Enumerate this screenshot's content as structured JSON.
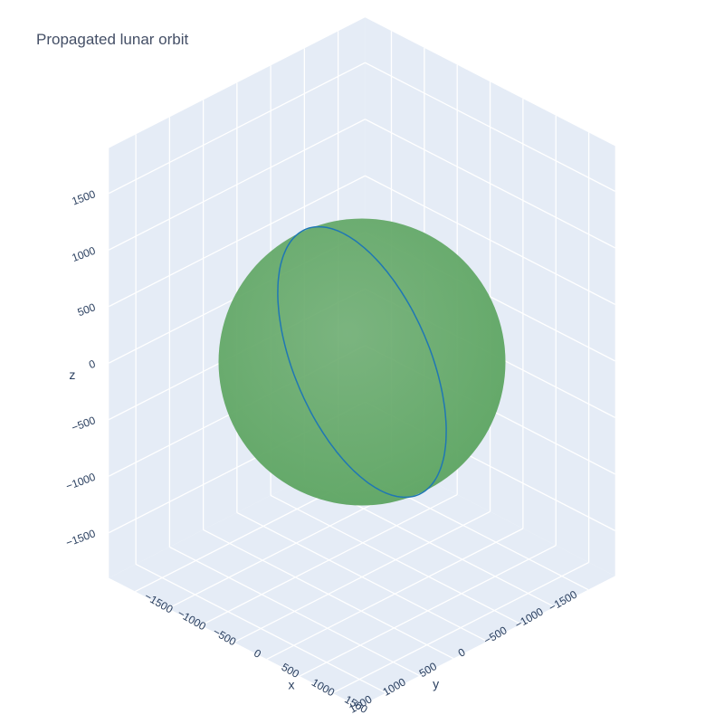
{
  "chart_data": {
    "type": "scatter3d",
    "title": "Propagated lunar orbit",
    "axes": {
      "x": {
        "title": "x",
        "range": [
          -1900,
          1900
        ],
        "ticks": [
          -1500,
          -1000,
          -500,
          0,
          500,
          1000,
          1500
        ],
        "tick_labels": [
          "−1500",
          "−1000",
          "−500",
          "0",
          "500",
          "1000",
          "1500"
        ]
      },
      "y": {
        "title": "y",
        "range": [
          -1900,
          1900
        ],
        "ticks": [
          -1500,
          -1000,
          -500,
          0,
          500,
          1000,
          1500
        ],
        "tick_labels": [
          "−1500",
          "−1000",
          "−500",
          "0",
          "500",
          "1000",
          "1500"
        ]
      },
      "z": {
        "title": "z",
        "range": [
          -1900,
          1900
        ],
        "ticks": [
          -1500,
          -1000,
          -500,
          0,
          500,
          1000,
          1500
        ],
        "tick_labels": [
          "−1500",
          "−1000",
          "−500",
          "0",
          "500",
          "1000",
          "1500"
        ]
      }
    },
    "background_color": "#e5ecf6",
    "grid": true,
    "surface": {
      "shape": "sphere",
      "radius": 1737,
      "color": "#6fae72",
      "opacity": 0.95
    },
    "orbit": {
      "shape": "closed-loop",
      "radius": 1837,
      "color": "#1f77b4"
    }
  }
}
